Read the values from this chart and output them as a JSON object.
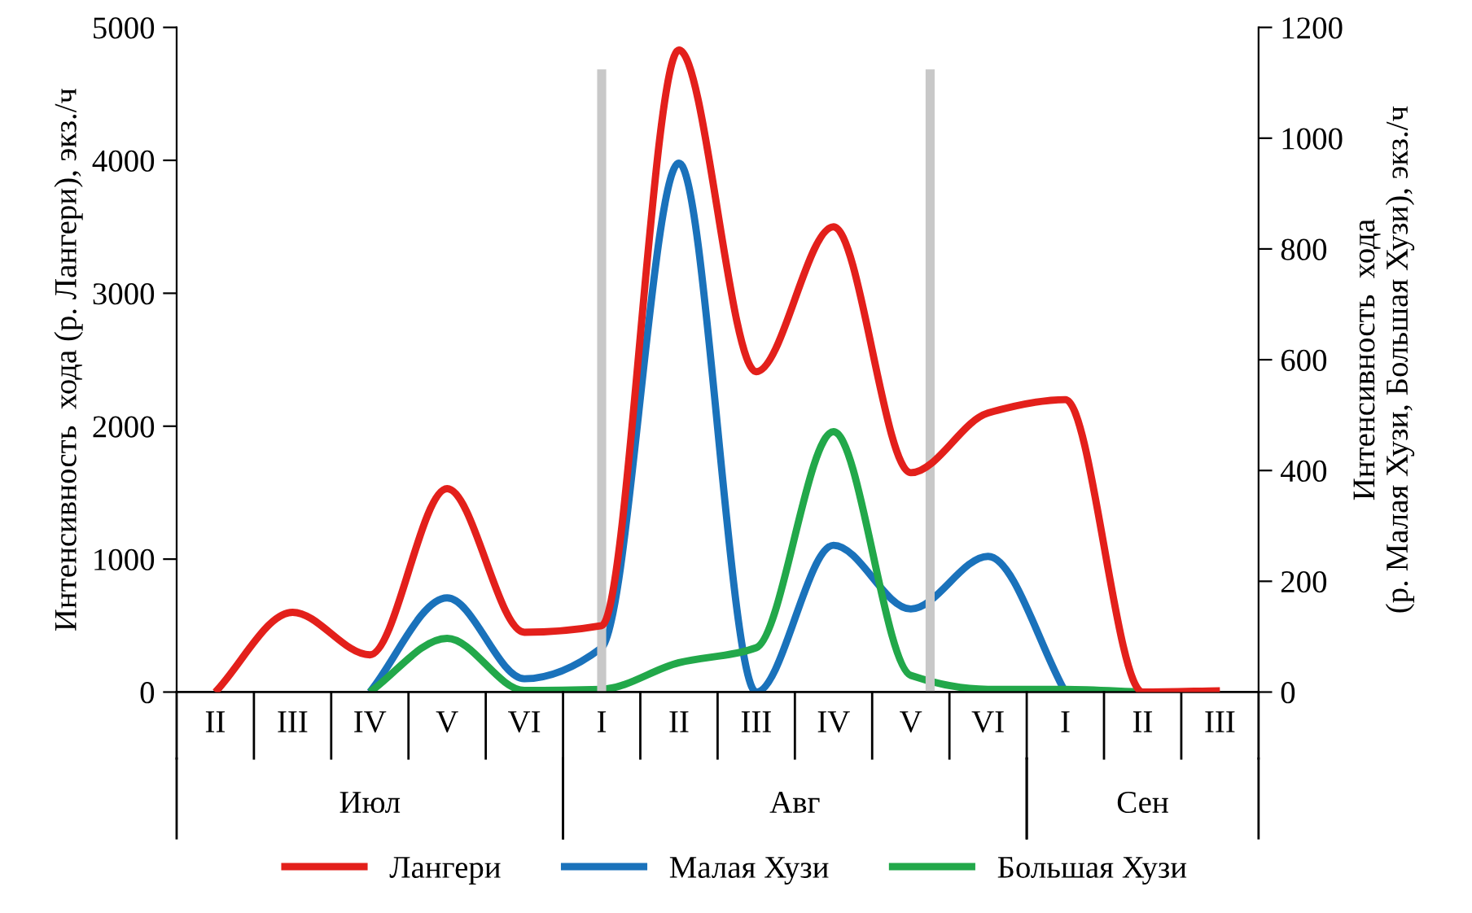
{
  "chart_data": {
    "type": "line",
    "ylabel": "Интенсивность  хода (р. Лангери), экз./ч",
    "y2label": "Интенсивность  хода\n(р. Малая Хузи, Большая Хузи), экз./ч",
    "categories": [
      "II",
      "III",
      "IV",
      "V",
      "VI",
      "I",
      "II",
      "III",
      "IV",
      "V",
      "VI",
      "I",
      "II",
      "III"
    ],
    "annotations": [
      "Июл",
      "Авг",
      "Сен"
    ],
    "series": [
      {
        "name": "Лангери",
        "color": "#e3201b",
        "values": [
          0,
          600,
          280,
          1530,
          450,
          500,
          4830,
          2410,
          3500,
          1650,
          2100,
          2200,
          0,
          10
        ]
      },
      {
        "name": "Малая Хузи",
        "color": "#1a72bb",
        "axis": "y2",
        "values": [
          null,
          null,
          0,
          170,
          24,
          80,
          955,
          0,
          265,
          150,
          245,
          0,
          null,
          null
        ]
      },
      {
        "name": "Большая Хузи",
        "color": "#22a84a",
        "axis": "y2",
        "values": [
          null,
          null,
          0,
          97,
          3,
          5,
          53,
          80,
          470,
          30,
          5,
          5,
          0,
          null
        ]
      }
    ],
    "ylim": [
      0,
      5000
    ],
    "yticks": [
      0,
      1000,
      2000,
      3000,
      4000,
      5000
    ],
    "y2lim": [
      0,
      1200
    ],
    "y2ticks": [
      0,
      200,
      400,
      600,
      800,
      1000,
      1200
    ],
    "legend": "bottom",
    "marker": "none",
    "line_style": "solid"
  }
}
